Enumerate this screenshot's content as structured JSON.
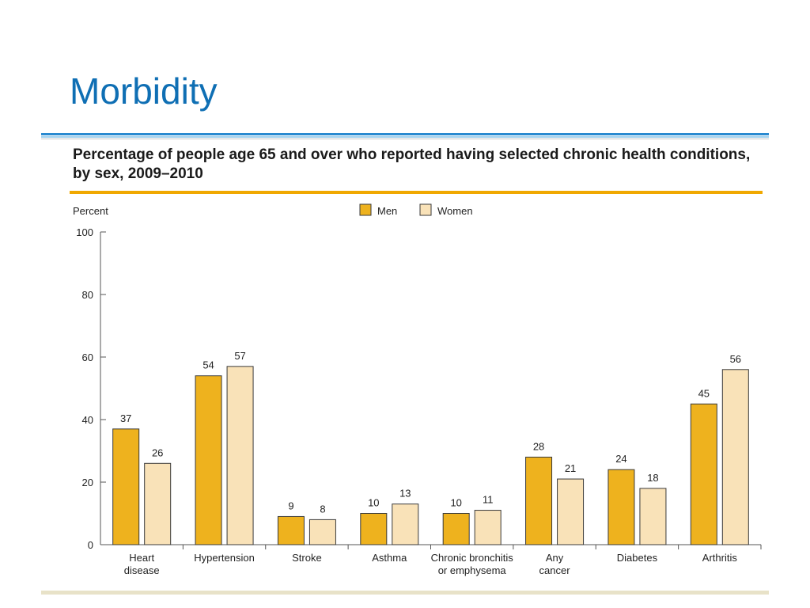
{
  "slide": {
    "title": "Morbidity"
  },
  "chart_data": {
    "type": "bar",
    "title": "Percentage of people age 65 and over who reported having selected chronic health conditions, by sex, 2009–2010",
    "ylabel": "Percent",
    "xlabel": "",
    "ylim": [
      0,
      100
    ],
    "yticks": [
      0,
      20,
      40,
      60,
      80,
      100
    ],
    "legend_position": "top-center",
    "grid": false,
    "categories": [
      [
        "Heart",
        "disease"
      ],
      [
        "Hypertension"
      ],
      [
        "Stroke"
      ],
      [
        "Asthma"
      ],
      [
        "Chronic bronchitis",
        "or emphysema"
      ],
      [
        "Any",
        "cancer"
      ],
      [
        "Diabetes"
      ],
      [
        "Arthritis"
      ]
    ],
    "series": [
      {
        "name": "Men",
        "color": "#eeb21e",
        "values": [
          37,
          54,
          9,
          10,
          10,
          28,
          24,
          45
        ]
      },
      {
        "name": "Women",
        "color": "#f9e2b8",
        "values": [
          26,
          57,
          8,
          13,
          11,
          21,
          18,
          56
        ]
      }
    ]
  }
}
